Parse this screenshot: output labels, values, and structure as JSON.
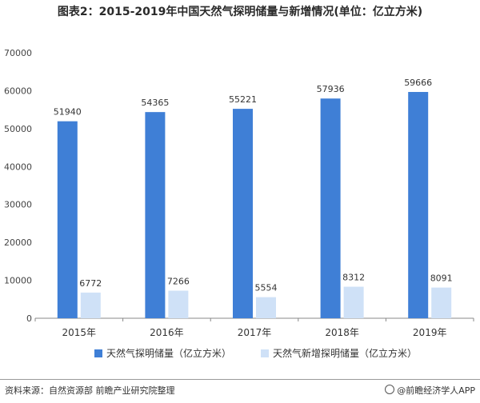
{
  "header": {
    "title": "图表2：2015-2019年中国天然气探明储量与新增情况(单位：亿立方米)"
  },
  "footer": {
    "source": "资料来源：自然资源部 前瞻产业研究院整理",
    "brand": "@前瞻经济学人APP"
  },
  "chart_data": {
    "type": "bar",
    "title": "图表2：2015-2019年中国天然气探明储量与新增情况(单位：亿立方米)",
    "categories": [
      "2015年",
      "2016年",
      "2017年",
      "2018年",
      "2019年"
    ],
    "series": [
      {
        "name": "天然气探明储量（亿立方米）",
        "values": [
          51940,
          54365,
          55221,
          57936,
          59666
        ],
        "color": "#3f7fd6"
      },
      {
        "name": "天然气新增探明储量（亿立方米）",
        "values": [
          6772,
          7266,
          5554,
          8312,
          8091
        ],
        "color": "#cfe1f7"
      }
    ],
    "ylim": [
      0,
      70000
    ],
    "yticks": [
      0,
      10000,
      20000,
      30000,
      40000,
      50000,
      60000,
      70000
    ],
    "grid": false,
    "legend": "bottom"
  }
}
